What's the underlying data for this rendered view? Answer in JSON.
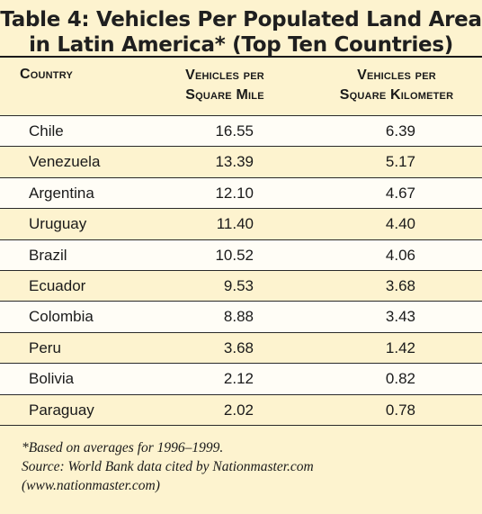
{
  "title": {
    "line1": "Table 4: Vehicles Per Populated Land Area",
    "line2": "in Latin America* (Top Ten Countries)"
  },
  "columns": {
    "country": "Country",
    "mile_line1": "Vehicles per",
    "mile_line2": "Square Mile",
    "km_line1": "Vehicles per",
    "km_line2": "Square Kilometer"
  },
  "rows": [
    {
      "country": "Chile",
      "per_sq_mile": "16.55",
      "per_sq_km": "6.39"
    },
    {
      "country": "Venezuela",
      "per_sq_mile": "13.39",
      "per_sq_km": "5.17"
    },
    {
      "country": "Argentina",
      "per_sq_mile": "12.10",
      "per_sq_km": "4.67"
    },
    {
      "country": "Uruguay",
      "per_sq_mile": "11.40",
      "per_sq_km": "4.40"
    },
    {
      "country": "Brazil",
      "per_sq_mile": "10.52",
      "per_sq_km": "4.06"
    },
    {
      "country": "Ecuador",
      "per_sq_mile": "9.53",
      "per_sq_km": "3.68"
    },
    {
      "country": "Colombia",
      "per_sq_mile": "8.88",
      "per_sq_km": "3.43"
    },
    {
      "country": "Peru",
      "per_sq_mile": "3.68",
      "per_sq_km": "1.42"
    },
    {
      "country": "Bolivia",
      "per_sq_mile": "2.12",
      "per_sq_km": "0.82"
    },
    {
      "country": "Paraguay",
      "per_sq_mile": "2.02",
      "per_sq_km": "0.78"
    }
  ],
  "notes": {
    "footnote": "*Based on averages for 1996–1999.",
    "source": "Source: World Bank data cited by Nationmaster.com",
    "url": "(www.nationmaster.com)"
  },
  "colors": {
    "background": "#fdf3cf",
    "row_light": "#fffdf6",
    "rule": "#1a1a1a"
  }
}
